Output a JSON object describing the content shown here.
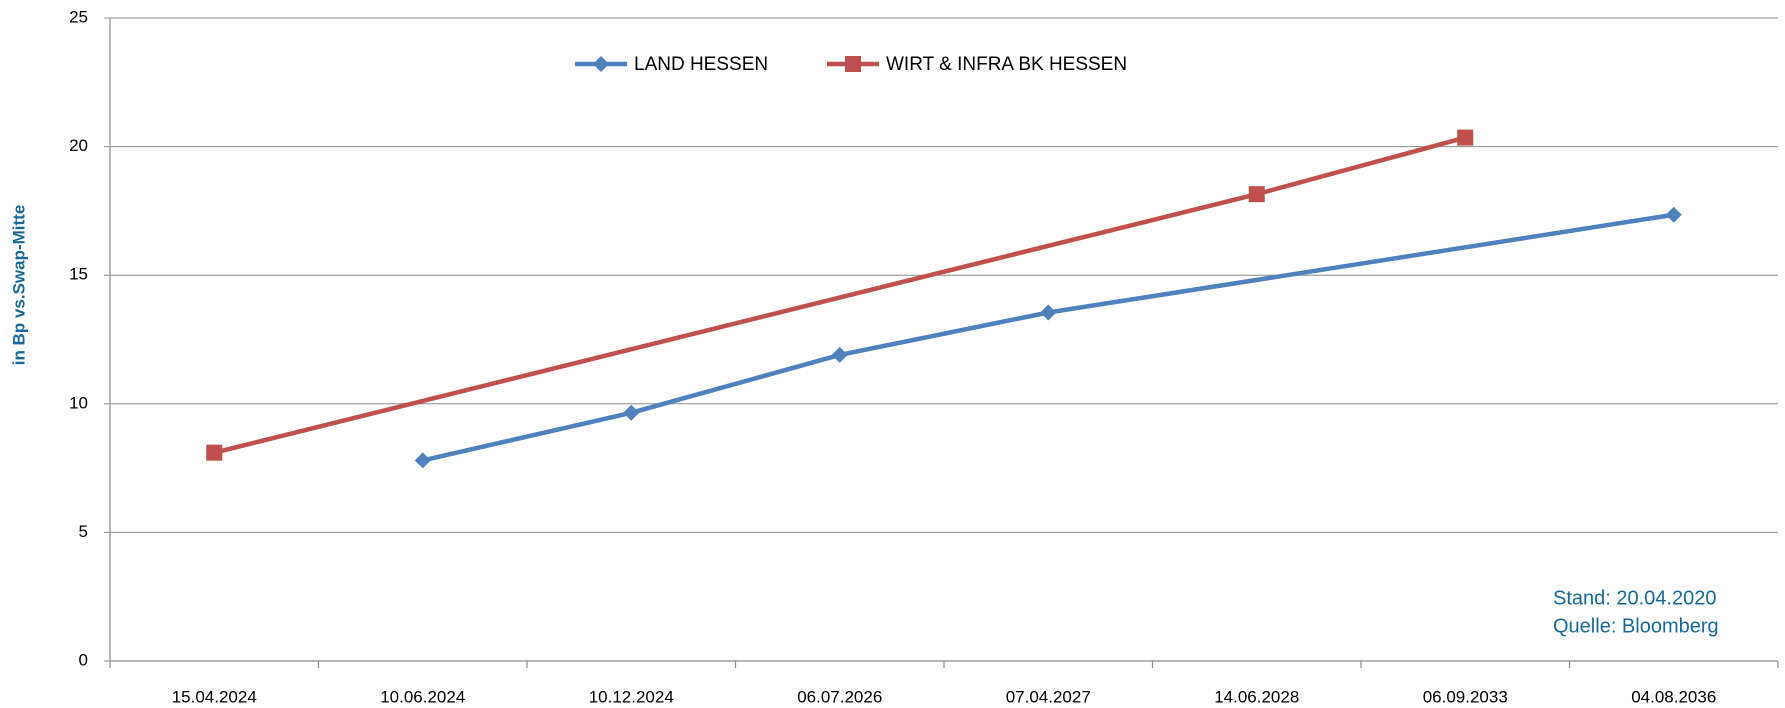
{
  "chart_data": {
    "type": "line",
    "y_axis_label": "in Bp vs.Swap-Mitte",
    "categories": [
      "15.04.2024",
      "10.06.2024",
      "10.12.2024",
      "06.07.2026",
      "07.04.2027",
      "14.06.2028",
      "06.09.2033",
      "04.08.2036"
    ],
    "series": [
      {
        "name": "LAND HESSEN",
        "color": "#4f81bd",
        "marker": "diamond",
        "values": [
          null,
          7.8,
          9.65,
          11.9,
          13.55,
          null,
          null,
          17.35
        ]
      },
      {
        "name": "WIRT & INFRA BK HESSEN",
        "color": "#c0504d",
        "marker": "square",
        "values": [
          8.1,
          null,
          null,
          null,
          null,
          18.15,
          20.35,
          null
        ]
      }
    ],
    "connect_gaps": true,
    "ylim": [
      0,
      25
    ],
    "yticks": [
      0,
      5,
      10,
      15,
      20,
      25
    ],
    "grid": true,
    "legend": "top",
    "annotations": [
      "Stand: 20.04.2020",
      "Quelle: Bloomberg"
    ]
  }
}
